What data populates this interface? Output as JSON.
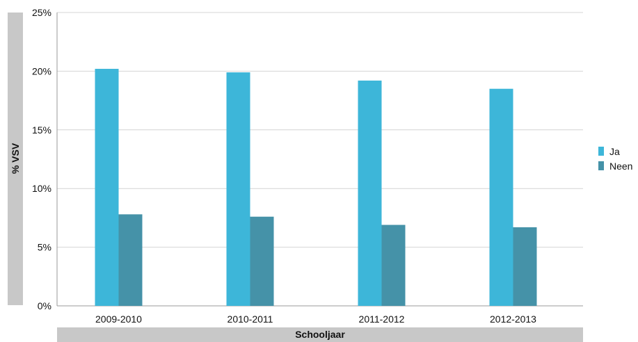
{
  "chart_data": {
    "type": "bar",
    "categories": [
      "2009-2010",
      "2010-2011",
      "2011-2012",
      "2012-2013"
    ],
    "series": [
      {
        "name": "Ja",
        "values": [
          20.2,
          19.9,
          19.2,
          18.5
        ],
        "color": "#3db6d9"
      },
      {
        "name": "Neen",
        "values": [
          7.8,
          7.6,
          6.9,
          6.7
        ],
        "color": "#4592a8"
      }
    ],
    "xlabel": "Schooljaar",
    "ylabel": "% VSV",
    "ylim": [
      0,
      25
    ],
    "yticks": [
      "0%",
      "5%",
      "10%",
      "15%",
      "20%",
      "25%"
    ],
    "grid": true,
    "legend_position": "right"
  }
}
